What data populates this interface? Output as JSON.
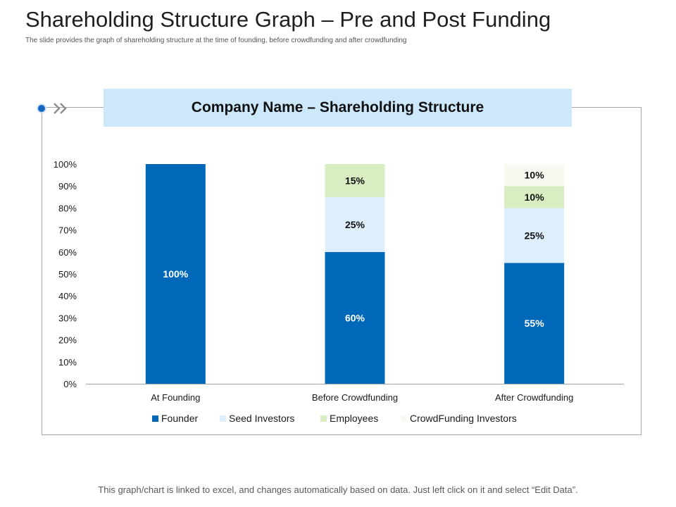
{
  "slide": {
    "title": "Shareholding Structure Graph – Pre and Post Funding",
    "subtitle": "The slide provides the graph of shareholding structure at the time of founding, before crowdfunding and after crowdfunding",
    "footer": "This graph/chart is linked to excel, and changes automatically based on data. Just left click on it and select “Edit Data”."
  },
  "icons": {
    "bullet": "circle-dot-icon",
    "arrow": "double-chevron-right-icon"
  },
  "colors": {
    "founder": "#0068b8",
    "seed_investors": "#ddeffc",
    "employees": "#d8eec2",
    "crowdfunding_investors": "#f6faf1",
    "header_band": "#cde7fb"
  },
  "chart_data": {
    "type": "bar",
    "stacked": true,
    "title": "Company Name – Shareholding Structure",
    "categories": [
      "At Founding",
      "Before Crowdfunding",
      "After Crowdfunding"
    ],
    "series": [
      {
        "name": "Founder",
        "values": [
          100,
          60,
          55
        ],
        "labels": [
          "100%",
          "60%",
          "55%"
        ]
      },
      {
        "name": "Seed Investors",
        "values": [
          0,
          25,
          25
        ],
        "labels": [
          "",
          "25%",
          "25%"
        ]
      },
      {
        "name": "Employees",
        "values": [
          0,
          15,
          10
        ],
        "labels": [
          "",
          "15%",
          "10%"
        ]
      },
      {
        "name": "CrowdFunding Investors",
        "values": [
          0,
          0,
          10
        ],
        "labels": [
          "",
          "",
          "10%"
        ]
      }
    ],
    "ylim": [
      0,
      100
    ],
    "yticks": [
      "0%",
      "10%",
      "20%",
      "30%",
      "40%",
      "50%",
      "60%",
      "70%",
      "80%",
      "90%",
      "100%"
    ],
    "grid": false,
    "legend": "bottom"
  }
}
